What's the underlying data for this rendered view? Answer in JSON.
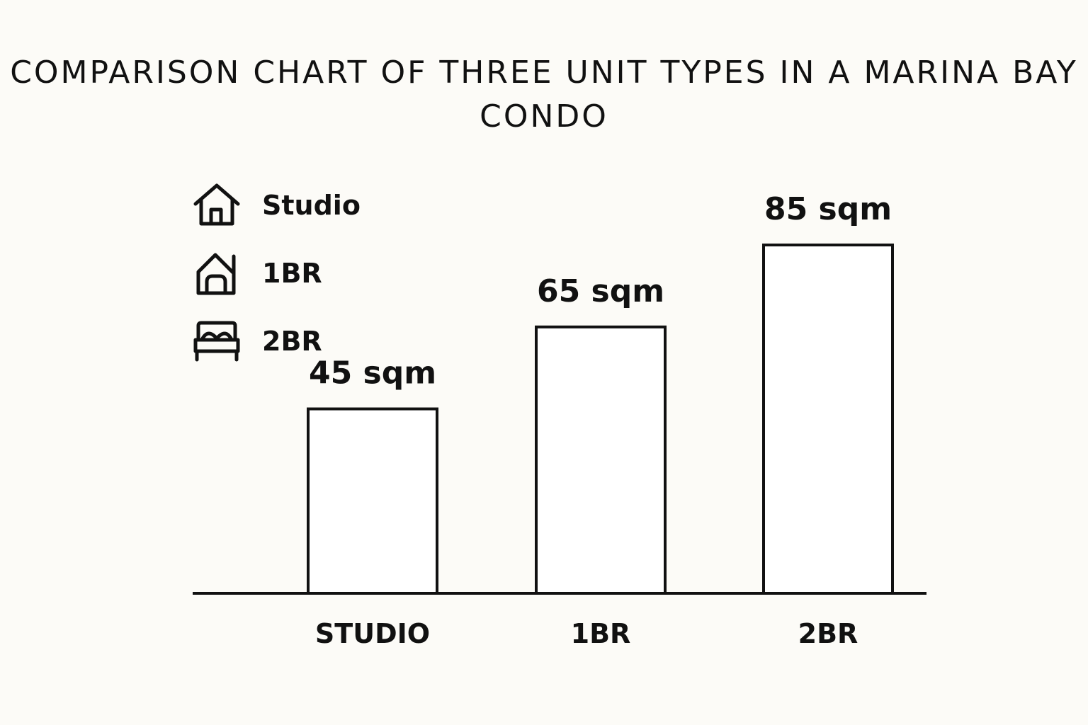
{
  "chart_data": {
    "type": "bar",
    "title": "COMPARISON CHART OF THREE UNIT TYPES IN A MARINA BAY CONDO",
    "categories": [
      "STUDIO",
      "1BR",
      "2BR"
    ],
    "values": [
      45,
      65,
      85
    ],
    "value_labels": [
      "45 sqm",
      "65 sqm",
      "85 sqm"
    ],
    "unit": "sqm",
    "xlabel": "",
    "ylabel": "",
    "ylim": [
      0,
      85
    ],
    "grid": false,
    "legend_placement": "top-left",
    "legend": [
      {
        "label": "Studio",
        "icon": "house-icon"
      },
      {
        "label": "1BR",
        "icon": "house-chimney-icon"
      },
      {
        "label": "2BR",
        "icon": "bed-icon"
      }
    ],
    "colors": {
      "bar_fill": "#ffffff",
      "stroke": "#111111",
      "background": "#fcfbf7"
    }
  }
}
